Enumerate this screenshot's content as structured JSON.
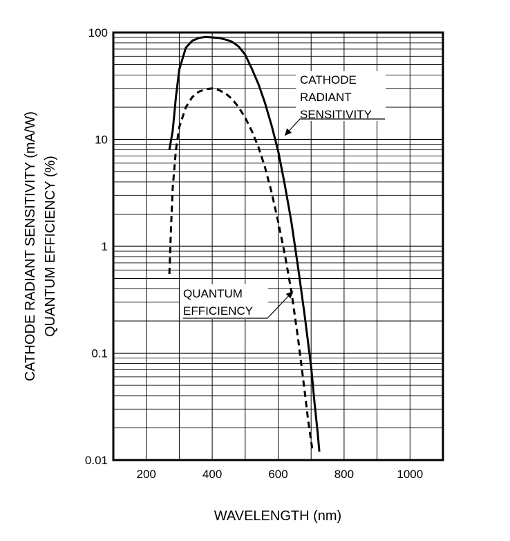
{
  "chart_data": {
    "type": "line",
    "xlabel": "WAVELENGTH (nm)",
    "ylabel_lines": [
      "CATHODE RADIANT SENSITIVITY (mA/W)",
      "QUANTUM EFFICIENCY (%)"
    ],
    "xlim": [
      100,
      1100
    ],
    "ylim": [
      0.01,
      100
    ],
    "yscale": "log",
    "grid": true,
    "x_ticks": [
      200,
      400,
      600,
      800,
      1000
    ],
    "x_tick_labels": [
      "200",
      "400",
      "600",
      "800",
      "1000"
    ],
    "y_ticks": [
      0.01,
      0.1,
      1,
      10,
      100
    ],
    "y_tick_labels": [
      "0.01",
      "0.1",
      "1",
      "10",
      "100"
    ],
    "series": [
      {
        "name": "CATHODE RADIANT SENSITIVITY",
        "label_lines": [
          "CATHODE",
          "RADIANT",
          "SENSITIVITY"
        ],
        "style": "solid",
        "x": [
          270,
          280,
          290,
          300,
          320,
          340,
          360,
          380,
          400,
          420,
          440,
          460,
          480,
          500,
          520,
          540,
          560,
          580,
          600,
          620,
          640,
          660,
          680,
          700,
          710,
          720,
          725
        ],
        "y": [
          8.0,
          12,
          25,
          45,
          72,
          84,
          89,
          91,
          90,
          89,
          86,
          82,
          74,
          62,
          46,
          33,
          22,
          13.5,
          7.8,
          3.8,
          1.7,
          0.65,
          0.23,
          0.075,
          0.035,
          0.018,
          0.012
        ]
      },
      {
        "name": "QUANTUM EFFICIENCY",
        "label_lines": [
          "QUANTUM",
          "EFFICIENCY"
        ],
        "style": "dashed",
        "x": [
          270,
          275,
          280,
          290,
          300,
          320,
          340,
          360,
          380,
          400,
          420,
          440,
          460,
          480,
          500,
          520,
          540,
          560,
          580,
          600,
          620,
          640,
          660,
          680,
          690,
          700,
          705
        ],
        "y": [
          0.55,
          1.5,
          3.5,
          8,
          13,
          20,
          25,
          28,
          29.5,
          30,
          29,
          27,
          24,
          20,
          16,
          12,
          8.5,
          5.5,
          3.2,
          1.7,
          0.85,
          0.38,
          0.14,
          0.045,
          0.025,
          0.015,
          0.012
        ]
      }
    ]
  }
}
